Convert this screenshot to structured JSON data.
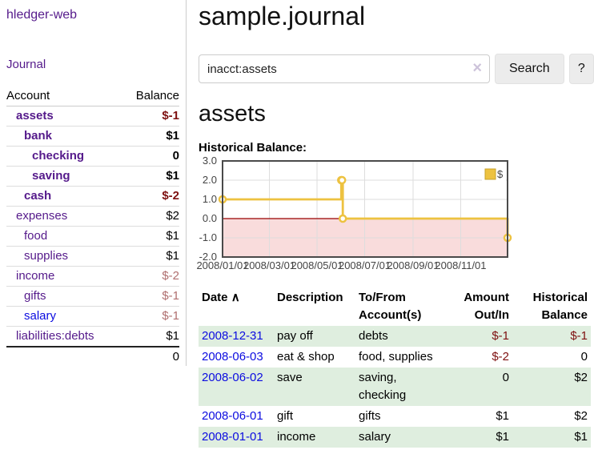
{
  "app": {
    "title": "hledger-web"
  },
  "sidebar": {
    "journal_label": "Journal",
    "accounts": {
      "header_account": "Account",
      "header_balance": "Balance",
      "rows": [
        {
          "name": "assets",
          "balance": "$-1",
          "depth": 1,
          "emphasized": true
        },
        {
          "name": "bank",
          "balance": "$1",
          "depth": 2,
          "emphasized": true
        },
        {
          "name": "checking",
          "balance": "0",
          "depth": 3,
          "emphasized": true
        },
        {
          "name": "saving",
          "balance": "$1",
          "depth": 3,
          "emphasized": true
        },
        {
          "name": "cash",
          "balance": "$-2",
          "depth": 2,
          "emphasized": true
        },
        {
          "name": "expenses",
          "balance": "$2",
          "depth": 1,
          "emphasized": false
        },
        {
          "name": "food",
          "balance": "$1",
          "depth": 2,
          "emphasized": false
        },
        {
          "name": "supplies",
          "balance": "$1",
          "depth": 2,
          "emphasized": false
        },
        {
          "name": "income",
          "balance": "$-2",
          "depth": 1,
          "emphasized": false
        },
        {
          "name": "gifts",
          "balance": "$-1",
          "depth": 2,
          "emphasized": false
        },
        {
          "name": "salary",
          "balance": "$-1",
          "depth": 2,
          "emphasized": false,
          "link_blue": true
        },
        {
          "name": "liabilities:debts",
          "balance": "$1",
          "depth": 1,
          "emphasized": false
        }
      ],
      "total": "0"
    }
  },
  "main": {
    "title": "sample.journal",
    "search": {
      "value": "inacct:assets",
      "clear_icon": "×",
      "button_label": "Search",
      "help_label": "?"
    },
    "account_heading": "assets",
    "chart_heading": "Historical Balance:"
  },
  "chart_data": {
    "type": "line",
    "title": "Historical Balance:",
    "xlim": [
      "2008-01-01",
      "2008-12-31"
    ],
    "ylim": [
      -2,
      3
    ],
    "xticks": [
      {
        "pos": "2008-01-01",
        "label": "2008/01/01"
      },
      {
        "pos": "2008-03-01",
        "label": "2008/03/01"
      },
      {
        "pos": "2008-05-01",
        "label": "2008/05/01"
      },
      {
        "pos": "2008-07-01",
        "label": "2008/07/01"
      },
      {
        "pos": "2008-09-01",
        "label": "2008/09/01"
      },
      {
        "pos": "2008-11-01",
        "label": "2008/11/01"
      }
    ],
    "yticks": [
      {
        "pos": 3,
        "label": "3.0"
      },
      {
        "pos": 2,
        "label": "2.0"
      },
      {
        "pos": 1,
        "label": "1.0"
      },
      {
        "pos": 0,
        "label": "0.0"
      },
      {
        "pos": -1,
        "label": "-1.0"
      },
      {
        "pos": -2,
        "label": "-2.0"
      }
    ],
    "series": [
      {
        "name": "$",
        "color": "#EDC240",
        "step": true,
        "points": [
          [
            "2008-01-01",
            1
          ],
          [
            "2008-06-01",
            2
          ],
          [
            "2008-06-02",
            2
          ],
          [
            "2008-06-03",
            0
          ],
          [
            "2008-12-31",
            -1
          ]
        ]
      }
    ],
    "legend": [
      {
        "label": "$",
        "color": "#EDC240"
      }
    ],
    "legend_position": "top-right",
    "grid": true,
    "grid_color": "#dddddd",
    "border_color": "#4a4a4a",
    "zero_line_color": "#990000",
    "negative_region_color": "#f9dcdc"
  },
  "register": {
    "headers": {
      "date": "Date",
      "sort_icon": "∧",
      "description": "Description",
      "accounts": "To/From Account(s)",
      "amount": "Amount Out/In",
      "balance": "Historical Balance"
    },
    "rows": [
      {
        "date": "2008-12-31",
        "description": "pay off",
        "accounts": "debts",
        "amount": "$-1",
        "balance": "$-1"
      },
      {
        "date": "2008-06-03",
        "description": "eat & shop",
        "accounts": "food, supplies",
        "amount": "$-2",
        "balance": "0"
      },
      {
        "date": "2008-06-02",
        "description": "save",
        "accounts": "saving, checking",
        "amount": "0",
        "balance": "$2"
      },
      {
        "date": "2008-06-01",
        "description": "gift",
        "accounts": "gifts",
        "amount": "$1",
        "balance": "$2"
      },
      {
        "date": "2008-01-01",
        "description": "income",
        "accounts": "salary",
        "amount": "$1",
        "balance": "$1"
      }
    ]
  }
}
